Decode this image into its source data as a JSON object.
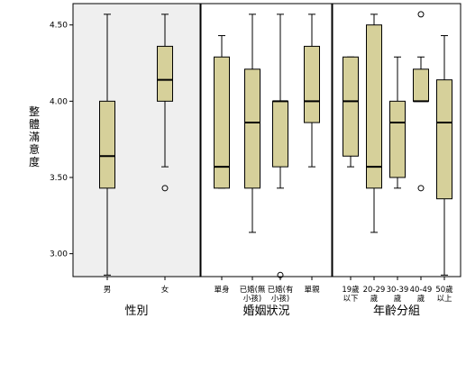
{
  "chart_data": {
    "type": "boxplot",
    "ylabel": "整體滿意度",
    "ylim": [
      2.85,
      4.64
    ],
    "yticks": [
      "3.00",
      "3.50",
      "4.00",
      "4.50"
    ],
    "groups": [
      {
        "title": "性別",
        "shaded": true,
        "categories": [
          {
            "label": [
              "男"
            ],
            "min": 2.86,
            "q1": 3.43,
            "median": 3.64,
            "q3": 4.0,
            "max": 4.57,
            "outliers": []
          },
          {
            "label": [
              "女"
            ],
            "min": 3.57,
            "q1": 4.0,
            "median": 4.14,
            "q3": 4.36,
            "max": 4.57,
            "outliers": [
              3.43
            ]
          }
        ]
      },
      {
        "title": "婚姻狀況",
        "shaded": false,
        "categories": [
          {
            "label": [
              "單身"
            ],
            "min": 3.43,
            "q1": 3.43,
            "median": 3.57,
            "q3": 4.29,
            "max": 4.43,
            "outliers": []
          },
          {
            "label": [
              "已婚(無",
              "小孩)"
            ],
            "min": 3.14,
            "q1": 3.43,
            "median": 3.86,
            "q3": 4.21,
            "max": 4.57,
            "outliers": []
          },
          {
            "label": [
              "已婚(有",
              "小孩)"
            ],
            "min": 3.43,
            "q1": 3.57,
            "median": 4.0,
            "q3": 4.0,
            "max": 4.57,
            "outliers": [
              2.86
            ]
          },
          {
            "label": [
              "單親"
            ],
            "min": 3.57,
            "q1": 3.86,
            "median": 4.0,
            "q3": 4.36,
            "max": 4.57,
            "outliers": []
          }
        ]
      },
      {
        "title": "年齡分組",
        "shaded": false,
        "categories": [
          {
            "label": [
              "19歲",
              "以下"
            ],
            "min": 3.57,
            "q1": 3.64,
            "median": 4.0,
            "q3": 4.29,
            "max": 4.29,
            "outliers": []
          },
          {
            "label": [
              "20-29",
              "歲"
            ],
            "min": 3.14,
            "q1": 3.43,
            "median": 3.57,
            "q3": 4.5,
            "max": 4.57,
            "outliers": []
          },
          {
            "label": [
              "30-39",
              "歲"
            ],
            "min": 3.43,
            "q1": 3.5,
            "median": 3.86,
            "q3": 4.0,
            "max": 4.29,
            "outliers": []
          },
          {
            "label": [
              "40-49",
              "歲"
            ],
            "min": 4.0,
            "q1": 4.0,
            "median": 4.0,
            "q3": 4.21,
            "max": 4.29,
            "outliers": [
              4.57,
              3.43
            ]
          },
          {
            "label": [
              "50歲",
              "以上"
            ],
            "min": 2.86,
            "q1": 3.36,
            "median": 3.86,
            "q3": 4.14,
            "max": 4.43,
            "outliers": []
          }
        ]
      }
    ],
    "colors": {
      "box": "#d6d09a",
      "panel_shade": "#efefef",
      "line": "#000000",
      "background": "#ffffff"
    }
  }
}
